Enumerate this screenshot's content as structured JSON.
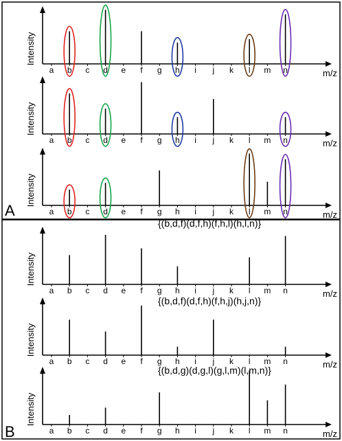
{
  "panels": [
    {
      "label": "A",
      "charts": [
        {
          "annotation": "",
          "peaks": [
            [
              "b",
              0.58
            ],
            [
              "d",
              0.96
            ],
            [
              "f",
              0.58
            ],
            [
              "h",
              0.38
            ],
            [
              "l",
              0.44
            ],
            [
              "n",
              0.88
            ]
          ],
          "ovals": [
            [
              "b",
              "#e02020"
            ],
            [
              "d",
              "#16a34a"
            ],
            [
              "h",
              "#1e3a9e"
            ],
            [
              "l",
              "#6b3a12"
            ],
            [
              "n",
              "#6a2bb0"
            ]
          ]
        },
        {
          "annotation": "",
          "peaks": [
            [
              "b",
              0.72
            ],
            [
              "d",
              0.45
            ],
            [
              "f",
              0.92
            ],
            [
              "h",
              0.3
            ],
            [
              "j",
              0.62
            ],
            [
              "n",
              0.3
            ]
          ],
          "ovals": [
            [
              "b",
              "#e02020"
            ],
            [
              "d",
              "#16a34a"
            ],
            [
              "h",
              "#1e3a9e"
            ],
            [
              "n",
              "#6a2bb0"
            ]
          ]
        },
        {
          "annotation": "",
          "peaks": [
            [
              "b",
              0.28
            ],
            [
              "d",
              0.4
            ],
            [
              "g",
              0.62
            ],
            [
              "l",
              0.92
            ],
            [
              "m",
              0.42
            ],
            [
              "n",
              0.82
            ]
          ],
          "ovals": [
            [
              "b",
              "#e02020"
            ],
            [
              "d",
              "#16a34a"
            ],
            [
              "l",
              "#6b3a12"
            ],
            [
              "n",
              "#6a2bb0"
            ]
          ]
        }
      ]
    },
    {
      "label": "B",
      "charts": [
        {
          "annotation": "{(b,d,f)(d,f,h)(f,h,l)(h,l,n)}",
          "peaks": [
            [
              "b",
              0.52
            ],
            [
              "d",
              0.88
            ],
            [
              "f",
              0.64
            ],
            [
              "h",
              0.32
            ],
            [
              "l",
              0.48
            ],
            [
              "n",
              0.86
            ]
          ],
          "ovals": []
        },
        {
          "annotation": "{(b,d,f)(d,f,h)(f,h,j)(h,j,n)}",
          "peaks": [
            [
              "b",
              0.63
            ],
            [
              "d",
              0.42
            ],
            [
              "f",
              0.88
            ],
            [
              "h",
              0.15
            ],
            [
              "j",
              0.63
            ],
            [
              "n",
              0.15
            ]
          ],
          "ovals": []
        },
        {
          "annotation": "{(b,d,g)(d,g,l)(g,l,m)(l,m,n)}",
          "peaks": [
            [
              "b",
              0.17
            ],
            [
              "d",
              0.3
            ],
            [
              "g",
              0.57
            ],
            [
              "l",
              0.96
            ],
            [
              "m",
              0.43
            ],
            [
              "n",
              0.71
            ]
          ],
          "ovals": []
        }
      ]
    }
  ],
  "categories": [
    "a",
    "b",
    "c",
    "d",
    "e",
    "f",
    "g",
    "h",
    "i",
    "j",
    "k",
    "l",
    "m",
    "n"
  ],
  "xlabel": "m/z",
  "ylabel": "Intensity"
}
